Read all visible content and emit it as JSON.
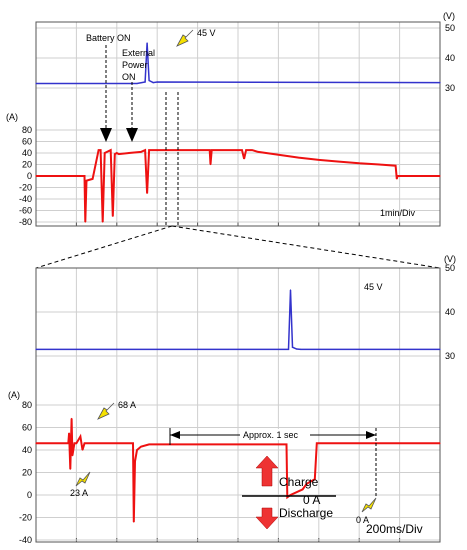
{
  "chart_data": [
    {
      "type": "line",
      "title": "",
      "scale_label": "1min/Div",
      "voltage_axis": {
        "unit": "(V)",
        "ylim": [
          25,
          50
        ],
        "ticks": [
          30,
          40,
          50
        ]
      },
      "current_axis": {
        "unit": "(A)",
        "ylim": [
          -80,
          80
        ],
        "ticks": [
          80,
          60,
          40,
          20,
          0,
          -20,
          -40,
          -60,
          -80
        ]
      },
      "grid": true,
      "x_divisions": 10,
      "series": [
        {
          "color": "#3333cc",
          "axis": "voltage",
          "x": [
            0,
            2.5,
            2.7,
            2.75,
            2.8,
            2.9,
            3.0,
            10
          ],
          "y": [
            31.5,
            31.5,
            32.0,
            45.0,
            32.5,
            31.8,
            32.0,
            31.8
          ]
        },
        {
          "color": "#ee1111",
          "axis": "current",
          "x": [
            0,
            1.2,
            1.22,
            1.25,
            1.4,
            1.55,
            1.6,
            1.65,
            1.7,
            1.85,
            1.9,
            1.95,
            2.0,
            2.05,
            2.3,
            2.6,
            2.7,
            2.75,
            2.8,
            4.3,
            4.32,
            4.35,
            5.1,
            5.15,
            5.2,
            5.35,
            5.5,
            6.0,
            6.5,
            7.0,
            7.5,
            8.0,
            8.5,
            8.9,
            8.93,
            8.95,
            10
          ],
          "y": [
            0,
            0,
            -80,
            -8,
            -5,
            45,
            45,
            -80,
            40,
            45,
            -70,
            38,
            40,
            38,
            40,
            42,
            45,
            -30,
            45,
            45,
            20,
            45,
            45,
            30,
            45,
            45,
            42,
            37,
            32,
            28,
            25,
            22,
            20,
            18,
            -5,
            0,
            0
          ]
        }
      ],
      "annotations": [
        {
          "text": "Battery ON"
        },
        {
          "text": "External Power ON"
        },
        {
          "text": "45 V"
        }
      ]
    },
    {
      "type": "line",
      "title": "",
      "scale_label": "200ms/Div",
      "voltage_axis": {
        "unit": "(V)",
        "ylim": [
          25,
          50
        ],
        "ticks": [
          30,
          40,
          50
        ]
      },
      "current_axis": {
        "unit": "(A)",
        "ylim": [
          -40,
          80
        ],
        "ticks": [
          80,
          60,
          40,
          20,
          0,
          -20,
          -40
        ]
      },
      "grid": true,
      "x_divisions": 10,
      "series": [
        {
          "color": "#3333cc",
          "axis": "voltage",
          "x": [
            0,
            6.25,
            6.3,
            6.35,
            6.45,
            6.55,
            10
          ],
          "y": [
            31.5,
            31.5,
            45.0,
            32.0,
            31.6,
            31.5,
            31.5
          ]
        },
        {
          "color": "#ee1111",
          "axis": "current",
          "x": [
            0,
            0.8,
            0.82,
            0.85,
            0.88,
            0.9,
            0.95,
            1.0,
            1.1,
            1.15,
            1.2,
            2.4,
            2.42,
            2.45,
            2.5,
            2.6,
            2.8,
            3.5,
            6.2,
            6.22,
            6.3,
            6.6,
            6.7,
            6.9,
            6.95,
            10
          ],
          "y": [
            46,
            46,
            55,
            23,
            68,
            35,
            46,
            46,
            52,
            40,
            46,
            46,
            -24,
            30,
            40,
            43,
            45,
            45,
            45,
            -2,
            0,
            5,
            10,
            14,
            46,
            46
          ]
        }
      ],
      "annotations": [
        {
          "text": "45 V"
        },
        {
          "text": "68 A"
        },
        {
          "text": "23 A"
        },
        {
          "text": "Approx. 1 sec"
        },
        {
          "text": "Charge"
        },
        {
          "text": "0 A"
        },
        {
          "text": "Discharge"
        },
        {
          "text": "0 A"
        }
      ]
    }
  ]
}
